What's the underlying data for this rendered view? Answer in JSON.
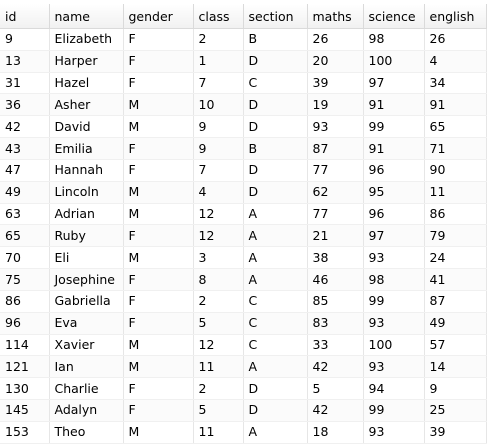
{
  "grid": {
    "columns": [
      "id",
      "name",
      "gender",
      "class",
      "section",
      "maths",
      "science",
      "english"
    ],
    "rows": [
      [
        "9",
        "Elizabeth",
        "F",
        "2",
        "B",
        "26",
        "98",
        "26"
      ],
      [
        "13",
        "Harper",
        "F",
        "1",
        "D",
        "20",
        "100",
        "4"
      ],
      [
        "31",
        "Hazel",
        "F",
        "7",
        "C",
        "39",
        "97",
        "34"
      ],
      [
        "36",
        "Asher",
        "M",
        "10",
        "D",
        "19",
        "91",
        "91"
      ],
      [
        "42",
        "David",
        "M",
        "9",
        "D",
        "93",
        "99",
        "65"
      ],
      [
        "43",
        "Emilia",
        "F",
        "9",
        "B",
        "87",
        "91",
        "71"
      ],
      [
        "47",
        "Hannah",
        "F",
        "7",
        "D",
        "77",
        "96",
        "90"
      ],
      [
        "49",
        "Lincoln",
        "M",
        "4",
        "D",
        "62",
        "95",
        "11"
      ],
      [
        "63",
        "Adrian",
        "M",
        "12",
        "A",
        "77",
        "96",
        "86"
      ],
      [
        "65",
        "Ruby",
        "F",
        "12",
        "A",
        "21",
        "97",
        "79"
      ],
      [
        "70",
        "Eli",
        "M",
        "3",
        "A",
        "38",
        "93",
        "24"
      ],
      [
        "75",
        "Josephine",
        "F",
        "8",
        "A",
        "46",
        "98",
        "41"
      ],
      [
        "86",
        "Gabriella",
        "F",
        "2",
        "C",
        "85",
        "99",
        "87"
      ],
      [
        "96",
        "Eva",
        "F",
        "5",
        "C",
        "83",
        "93",
        "49"
      ],
      [
        "114",
        "Xavier",
        "M",
        "12",
        "C",
        "33",
        "100",
        "57"
      ],
      [
        "121",
        "Ian",
        "M",
        "11",
        "A",
        "42",
        "93",
        "14"
      ],
      [
        "130",
        "Charlie",
        "F",
        "2",
        "D",
        "5",
        "94",
        "9"
      ],
      [
        "145",
        "Adalyn",
        "F",
        "5",
        "D",
        "42",
        "99",
        "25"
      ],
      [
        "153",
        "Theo",
        "M",
        "11",
        "A",
        "18",
        "93",
        "39"
      ]
    ]
  }
}
